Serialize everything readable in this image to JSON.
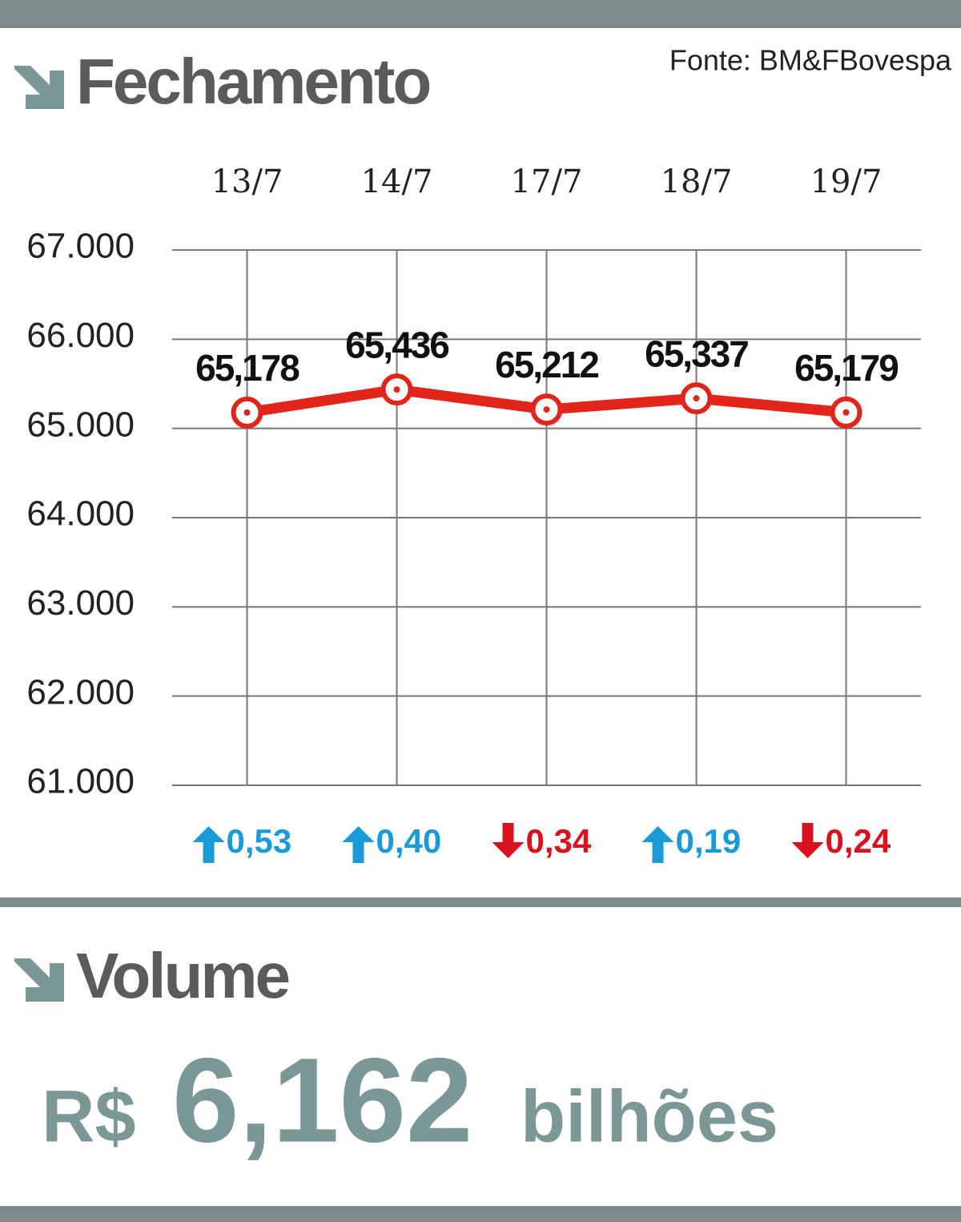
{
  "chart_data": {
    "type": "line",
    "title": "Fechamento",
    "source": "Fonte: BM&FBovespa",
    "categories": [
      "13/7",
      "14/7",
      "17/7",
      "18/7",
      "19/7"
    ],
    "values": [
      65178,
      65436,
      65212,
      65337,
      65179
    ],
    "value_labels": [
      "65,178",
      "65,436",
      "65,212",
      "65,337",
      "65,179"
    ],
    "color": "#e1251b",
    "ylim": [
      61000,
      67000
    ],
    "yticks": [
      {
        "value": 61000,
        "label": "61.000"
      },
      {
        "value": 62000,
        "label": "62.000"
      },
      {
        "value": 63000,
        "label": "63.000"
      },
      {
        "value": 64000,
        "label": "64.000"
      },
      {
        "value": 65000,
        "label": "65.000"
      },
      {
        "value": 66000,
        "label": "66.000"
      },
      {
        "value": 67000,
        "label": "67.000"
      }
    ],
    "grid": true,
    "changes": {
      "values": [
        0.53,
        0.4,
        -0.34,
        0.19,
        -0.24
      ],
      "value_labels": [
        "0,53",
        "0,40",
        "0,34",
        "0,19",
        "0,24"
      ],
      "up_color": "#1a9bd7",
      "down_color": "#d9101e"
    }
  },
  "volume": {
    "title": "Volume",
    "currency": "R$",
    "amount": "6,162",
    "unit": "bilhões"
  }
}
